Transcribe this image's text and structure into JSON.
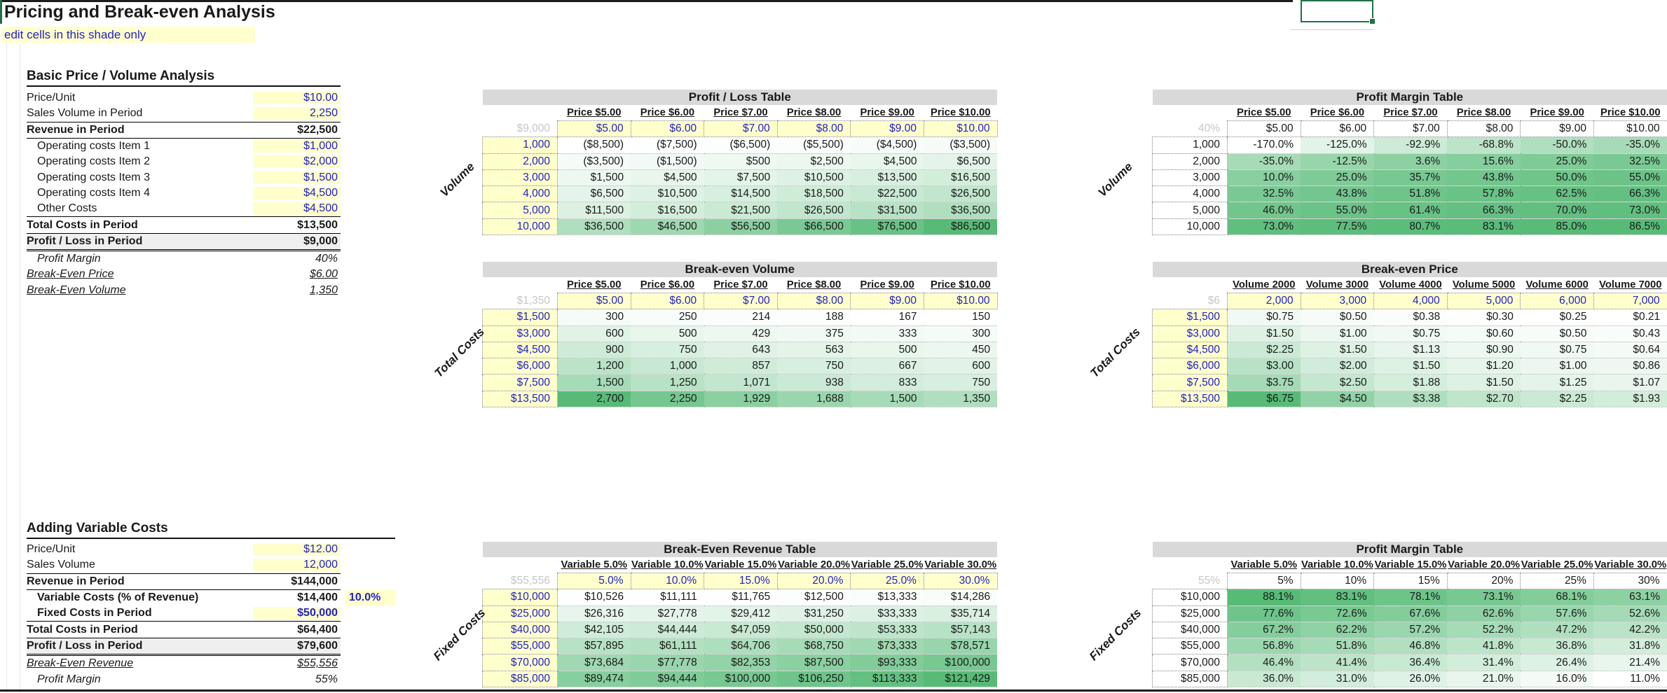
{
  "app": {
    "title": "Pricing and Break-even Analysis",
    "edit_note": "edit cells in this shade only"
  },
  "colors": {
    "input_bg": "#FFFFCC",
    "input_text": "#2222C8",
    "table_title_bg": "#D9D9D9",
    "scale_green_max": "#57BB77",
    "selection_border_green": "#1F7245",
    "reference_grey_text": "#C6C6C6"
  },
  "sections": {
    "basic": {
      "heading": "Basic Price / Volume Analysis"
    },
    "variable": {
      "heading": "Adding Variable Costs"
    }
  },
  "panels": {
    "basic": {
      "rows": [
        {
          "label": "Price/Unit",
          "value": "$10.00",
          "cls": "yellow"
        },
        {
          "label": "Sales Volume in Period",
          "value": "2,250",
          "cls": "yellow bb"
        },
        {
          "label": "Revenue in Period",
          "value": "$22,500",
          "cls": "bold bb"
        },
        {
          "label": "Operating costs Item 1",
          "value": "$1,000",
          "cls": "indent yellow"
        },
        {
          "label": "Operating costs Item 2",
          "value": "$2,000",
          "cls": "indent yellow"
        },
        {
          "label": "Operating costs Item 3",
          "value": "$1,500",
          "cls": "indent yellow"
        },
        {
          "label": "Operating costs Item 4",
          "value": "$4,500",
          "cls": "indent yellow"
        },
        {
          "label": "Other Costs",
          "value": "$4,500",
          "cls": "indent yellow"
        },
        {
          "label": "Total Costs in Period",
          "value": "$13,500",
          "cls": "bold bt bb"
        },
        {
          "label": "Profit / Loss in Period",
          "value": "$9,000",
          "cls": "bold grey dbl"
        },
        {
          "label": "Profit Margin",
          "value": "40%",
          "cls": "indent italic"
        },
        {
          "label": "Break-Even Price",
          "value": "$6.00",
          "cls": "italic underline"
        },
        {
          "label": "Break-Even Volume",
          "value": "1,350",
          "cls": "italic underline"
        }
      ]
    },
    "variable": {
      "rows": [
        {
          "label": "Price/Unit",
          "value": "$12.00",
          "cls": "yellow"
        },
        {
          "label": "Sales Volume",
          "value": "12,000",
          "cls": "yellow bb"
        },
        {
          "label": "Revenue in Period",
          "value": "$144,000",
          "cls": "bold bb"
        },
        {
          "label": "Variable Costs (% of Revenue)",
          "value": "$14,400",
          "cls": "indent bold",
          "extra": "10.0%"
        },
        {
          "label": "Fixed Costs in Period",
          "value": "$50,000",
          "cls": "indent bold yellow bb"
        },
        {
          "label": "Total Costs in Period",
          "value": "$64,400",
          "cls": "bold bb"
        },
        {
          "label": "Profit / Loss in Period",
          "value": "$79,600",
          "cls": "bold grey dbl"
        },
        {
          "label": "Break-Even Revenue",
          "value": "$55,556",
          "cls": "italic underline"
        },
        {
          "label": "Profit Margin",
          "value": "55%",
          "cls": "indent italic"
        }
      ]
    }
  },
  "tables": {
    "profit_loss": {
      "title": "Profit / Loss Table",
      "corner": "$9,000",
      "side_label": "Volume",
      "editable": true,
      "col_headers": [
        "Price $5.00",
        "Price $6.00",
        "Price $7.00",
        "Price $8.00",
        "Price $9.00",
        "Price $10.00"
      ],
      "input_row": [
        "$5.00",
        "$6.00",
        "$7.00",
        "$8.00",
        "$9.00",
        "$10.00"
      ],
      "row_labels": [
        "1,000",
        "2,000",
        "3,000",
        "4,000",
        "5,000",
        "10,000"
      ],
      "rows": [
        [
          "($8,500)",
          "($7,500)",
          "($6,500)",
          "($5,500)",
          "($4,500)",
          "($3,500)"
        ],
        [
          "($3,500)",
          "($1,500)",
          "$500",
          "$2,500",
          "$4,500",
          "$6,500"
        ],
        [
          "$1,500",
          "$4,500",
          "$7,500",
          "$10,500",
          "$13,500",
          "$16,500"
        ],
        [
          "$6,500",
          "$10,500",
          "$14,500",
          "$18,500",
          "$22,500",
          "$26,500"
        ],
        [
          "$11,500",
          "$16,500",
          "$21,500",
          "$26,500",
          "$31,500",
          "$36,500"
        ],
        [
          "$36,500",
          "$46,500",
          "$56,500",
          "$66,500",
          "$76,500",
          "$86,500"
        ]
      ]
    },
    "profit_margin_price": {
      "title": "Profit Margin Table",
      "corner": "40%",
      "side_label": "Volume",
      "editable": false,
      "col_headers": [
        "Price $5.00",
        "Price $6.00",
        "Price $7.00",
        "Price $8.00",
        "Price $9.00",
        "Price $10.00"
      ],
      "input_row": [
        "$5.00",
        "$6.00",
        "$7.00",
        "$8.00",
        "$9.00",
        "$10.00"
      ],
      "row_labels": [
        "1,000",
        "2,000",
        "3,000",
        "4,000",
        "5,000",
        "10,000"
      ],
      "rows": [
        [
          "-170.0%",
          "-125.0%",
          "-92.9%",
          "-68.8%",
          "-50.0%",
          "-35.0%"
        ],
        [
          "-35.0%",
          "-12.5%",
          "3.6%",
          "15.6%",
          "25.0%",
          "32.5%"
        ],
        [
          "10.0%",
          "25.0%",
          "35.7%",
          "43.8%",
          "50.0%",
          "55.0%"
        ],
        [
          "32.5%",
          "43.8%",
          "51.8%",
          "57.8%",
          "62.5%",
          "66.3%"
        ],
        [
          "46.0%",
          "55.0%",
          "61.4%",
          "66.3%",
          "70.0%",
          "73.0%"
        ],
        [
          "73.0%",
          "77.5%",
          "80.7%",
          "83.1%",
          "85.0%",
          "86.5%"
        ]
      ]
    },
    "breakeven_volume": {
      "title": "Break-even Volume",
      "corner": "$1,350",
      "side_label": "Total Costs",
      "editable": true,
      "col_headers": [
        "Price $5.00",
        "Price $6.00",
        "Price $7.00",
        "Price $8.00",
        "Price $9.00",
        "Price $10.00"
      ],
      "input_row": [
        "$5.00",
        "$6.00",
        "$7.00",
        "$8.00",
        "$9.00",
        "$10.00"
      ],
      "row_labels": [
        "$1,500",
        "$3,000",
        "$4,500",
        "$6,000",
        "$7,500",
        "$13,500"
      ],
      "rows": [
        [
          "300",
          "250",
          "214",
          "188",
          "167",
          "150"
        ],
        [
          "600",
          "500",
          "429",
          "375",
          "333",
          "300"
        ],
        [
          "900",
          "750",
          "643",
          "563",
          "500",
          "450"
        ],
        [
          "1,200",
          "1,000",
          "857",
          "750",
          "667",
          "600"
        ],
        [
          "1,500",
          "1,250",
          "1,071",
          "938",
          "833",
          "750"
        ],
        [
          "2,700",
          "2,250",
          "1,929",
          "1,688",
          "1,500",
          "1,350"
        ]
      ]
    },
    "breakeven_price": {
      "title": "Break-even Price",
      "corner": "$6",
      "side_label": "Total Costs",
      "editable": true,
      "col_headers": [
        "Volume 2000",
        "Volume 3000",
        "Volume 4000",
        "Volume 5000",
        "Volume 6000",
        "Volume 7000"
      ],
      "input_row": [
        "2,000",
        "3,000",
        "4,000",
        "5,000",
        "6,000",
        "7,000"
      ],
      "row_labels": [
        "$1,500",
        "$3,000",
        "$4,500",
        "$6,000",
        "$7,500",
        "$13,500"
      ],
      "rows": [
        [
          "$0.75",
          "$0.50",
          "$0.38",
          "$0.30",
          "$0.25",
          "$0.21"
        ],
        [
          "$1.50",
          "$1.00",
          "$0.75",
          "$0.60",
          "$0.50",
          "$0.43"
        ],
        [
          "$2.25",
          "$1.50",
          "$1.13",
          "$0.90",
          "$0.75",
          "$0.64"
        ],
        [
          "$3.00",
          "$2.00",
          "$1.50",
          "$1.20",
          "$1.00",
          "$0.86"
        ],
        [
          "$3.75",
          "$2.50",
          "$1.88",
          "$1.50",
          "$1.25",
          "$1.07"
        ],
        [
          "$6.75",
          "$4.50",
          "$3.38",
          "$2.70",
          "$2.25",
          "$1.93"
        ]
      ]
    },
    "breakeven_revenue": {
      "title": "Break-Even Revenue Table",
      "corner": "$55,556",
      "side_label": "Fixed Costs",
      "editable": true,
      "col_headers": [
        "Variable 5.0%",
        "Variable 10.0%",
        "Variable 15.0%",
        "Variable 20.0%",
        "Variable 25.0%",
        "Variable 30.0%"
      ],
      "input_row": [
        "5.0%",
        "10.0%",
        "15.0%",
        "20.0%",
        "25.0%",
        "30.0%"
      ],
      "row_labels": [
        "$10,000",
        "$25,000",
        "$40,000",
        "$55,000",
        "$70,000",
        "$85,000"
      ],
      "rows": [
        [
          "$10,526",
          "$11,111",
          "$11,765",
          "$12,500",
          "$13,333",
          "$14,286"
        ],
        [
          "$26,316",
          "$27,778",
          "$29,412",
          "$31,250",
          "$33,333",
          "$35,714"
        ],
        [
          "$42,105",
          "$44,444",
          "$47,059",
          "$50,000",
          "$53,333",
          "$57,143"
        ],
        [
          "$57,895",
          "$61,111",
          "$64,706",
          "$68,750",
          "$73,333",
          "$78,571"
        ],
        [
          "$73,684",
          "$77,778",
          "$82,353",
          "$87,500",
          "$93,333",
          "$100,000"
        ],
        [
          "$89,474",
          "$94,444",
          "$100,000",
          "$106,250",
          "$113,333",
          "$121,429"
        ]
      ]
    },
    "profit_margin_variable": {
      "title": "Profit Margin Table",
      "corner": "55%",
      "side_label": "Fixed Costs",
      "editable": false,
      "col_headers": [
        "Variable 5.0%",
        "Variable 10.0%",
        "Variable 15.0%",
        "Variable 20.0%",
        "Variable 25.0%",
        "Variable 30.0%"
      ],
      "input_row": [
        "5%",
        "10%",
        "15%",
        "20%",
        "25%",
        "30%"
      ],
      "row_labels": [
        "$10,000",
        "$25,000",
        "$40,000",
        "$55,000",
        "$70,000",
        "$85,000"
      ],
      "rows": [
        [
          "88.1%",
          "83.1%",
          "78.1%",
          "73.1%",
          "68.1%",
          "63.1%"
        ],
        [
          "77.6%",
          "72.6%",
          "67.6%",
          "62.6%",
          "57.6%",
          "52.6%"
        ],
        [
          "67.2%",
          "62.2%",
          "57.2%",
          "52.2%",
          "47.2%",
          "42.2%"
        ],
        [
          "56.8%",
          "51.8%",
          "46.8%",
          "41.8%",
          "36.8%",
          "31.8%"
        ],
        [
          "46.4%",
          "41.4%",
          "36.4%",
          "31.4%",
          "26.4%",
          "21.4%"
        ],
        [
          "36.0%",
          "31.0%",
          "26.0%",
          "21.0%",
          "16.0%",
          "11.0%"
        ]
      ]
    }
  }
}
